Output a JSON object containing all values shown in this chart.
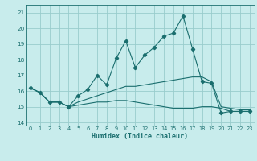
{
  "xlabel": "Humidex (Indice chaleur)",
  "ylabel": "",
  "xlim": [
    -0.5,
    23.5
  ],
  "ylim": [
    13.8,
    21.5
  ],
  "yticks": [
    14,
    15,
    16,
    17,
    18,
    19,
    20,
    21
  ],
  "xticks": [
    0,
    1,
    2,
    3,
    4,
    5,
    6,
    7,
    8,
    9,
    10,
    11,
    12,
    13,
    14,
    15,
    16,
    17,
    18,
    19,
    20,
    21,
    22,
    23
  ],
  "bg_color": "#c8ecec",
  "grid_color": "#99cccc",
  "line_color": "#1a6e6e",
  "series1_x": [
    0,
    1,
    2,
    3,
    4,
    5,
    6,
    7,
    8,
    9,
    10,
    11,
    12,
    13,
    14,
    15,
    16,
    17,
    18,
    19,
    20,
    21,
    22,
    23
  ],
  "series1_y": [
    16.2,
    15.9,
    15.3,
    15.3,
    15.0,
    15.7,
    16.1,
    17.0,
    16.4,
    18.1,
    19.2,
    17.5,
    18.3,
    18.8,
    19.5,
    19.7,
    20.8,
    18.7,
    16.6,
    16.5,
    14.6,
    14.7,
    14.7,
    14.7
  ],
  "series2_x": [
    0,
    1,
    2,
    3,
    4,
    5,
    6,
    7,
    8,
    9,
    10,
    11,
    12,
    13,
    14,
    15,
    16,
    17,
    18,
    19,
    20,
    21,
    22,
    23
  ],
  "series2_y": [
    16.2,
    15.9,
    15.3,
    15.3,
    15.0,
    15.3,
    15.5,
    15.7,
    15.9,
    16.1,
    16.3,
    16.3,
    16.4,
    16.5,
    16.6,
    16.7,
    16.8,
    16.9,
    16.9,
    16.6,
    15.0,
    14.9,
    14.8,
    14.8
  ],
  "series3_x": [
    0,
    1,
    2,
    3,
    4,
    5,
    6,
    7,
    8,
    9,
    10,
    11,
    12,
    13,
    14,
    15,
    16,
    17,
    18,
    19,
    20,
    21,
    22,
    23
  ],
  "series3_y": [
    16.2,
    15.9,
    15.3,
    15.3,
    15.0,
    15.1,
    15.2,
    15.3,
    15.3,
    15.4,
    15.4,
    15.3,
    15.2,
    15.1,
    15.0,
    14.9,
    14.9,
    14.9,
    15.0,
    15.0,
    14.9,
    14.7,
    14.7,
    14.7
  ]
}
